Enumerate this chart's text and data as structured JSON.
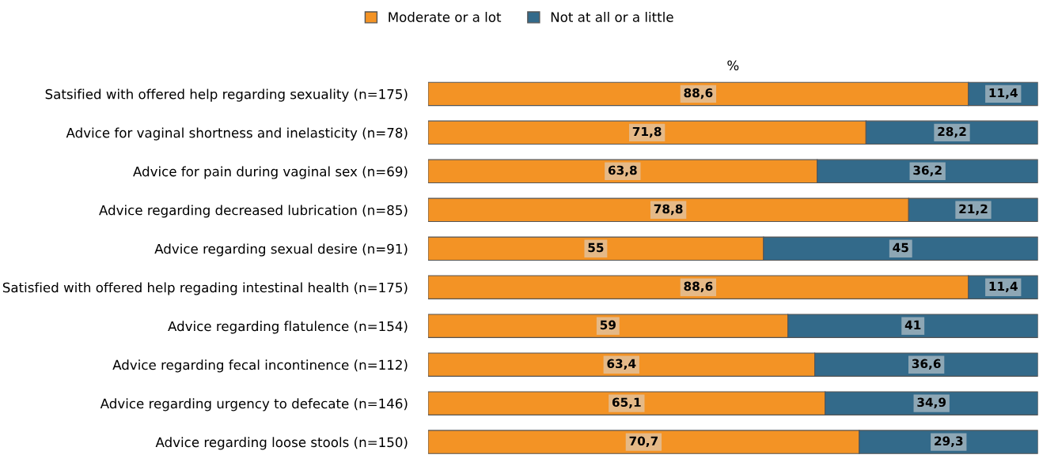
{
  "chart_data": {
    "type": "bar",
    "orientation": "horizontal",
    "stacked": true,
    "xlabel": "%",
    "xlim": [
      0,
      100
    ],
    "tick_labels": "y",
    "legend": "top",
    "grid": false,
    "categories": [
      "Satsified with offered help regarding sexuality (n=175)",
      "Advice for vaginal shortness and inelasticity (n=78)",
      "Advice for pain during vaginal sex (n=69)",
      "Advice regarding decreased lubrication (n=85)",
      "Advice regarding sexual desire (n=91)",
      "Satisfied with offered help regading intestinal health (n=175)",
      "Advice regarding flatulence (n=154)",
      "Advice regarding fecal incontinence (n=112)",
      "Advice regarding urgency to defecate (n=146)",
      "Advice regarding loose stools (n=150)"
    ],
    "series": [
      {
        "name": "Moderate or a lot",
        "color": "#f39325",
        "values": [
          88.6,
          71.8,
          63.8,
          78.8,
          55,
          88.6,
          59,
          63.4,
          65.1,
          70.7
        ],
        "value_labels": [
          "88,6",
          "71,8",
          "63,8",
          "78,8",
          "55",
          "88,6",
          "59",
          "63,4",
          "65,1",
          "70,7"
        ]
      },
      {
        "name": "Not at all or a little",
        "color": "#336a8a",
        "values": [
          11.4,
          28.2,
          36.2,
          21.2,
          45,
          11.4,
          41,
          36.6,
          34.9,
          29.3
        ],
        "value_labels": [
          "11,4",
          "28,2",
          "36,2",
          "21,2",
          "45",
          "11,4",
          "41",
          "36,6",
          "34,9",
          "29,3"
        ]
      }
    ]
  }
}
